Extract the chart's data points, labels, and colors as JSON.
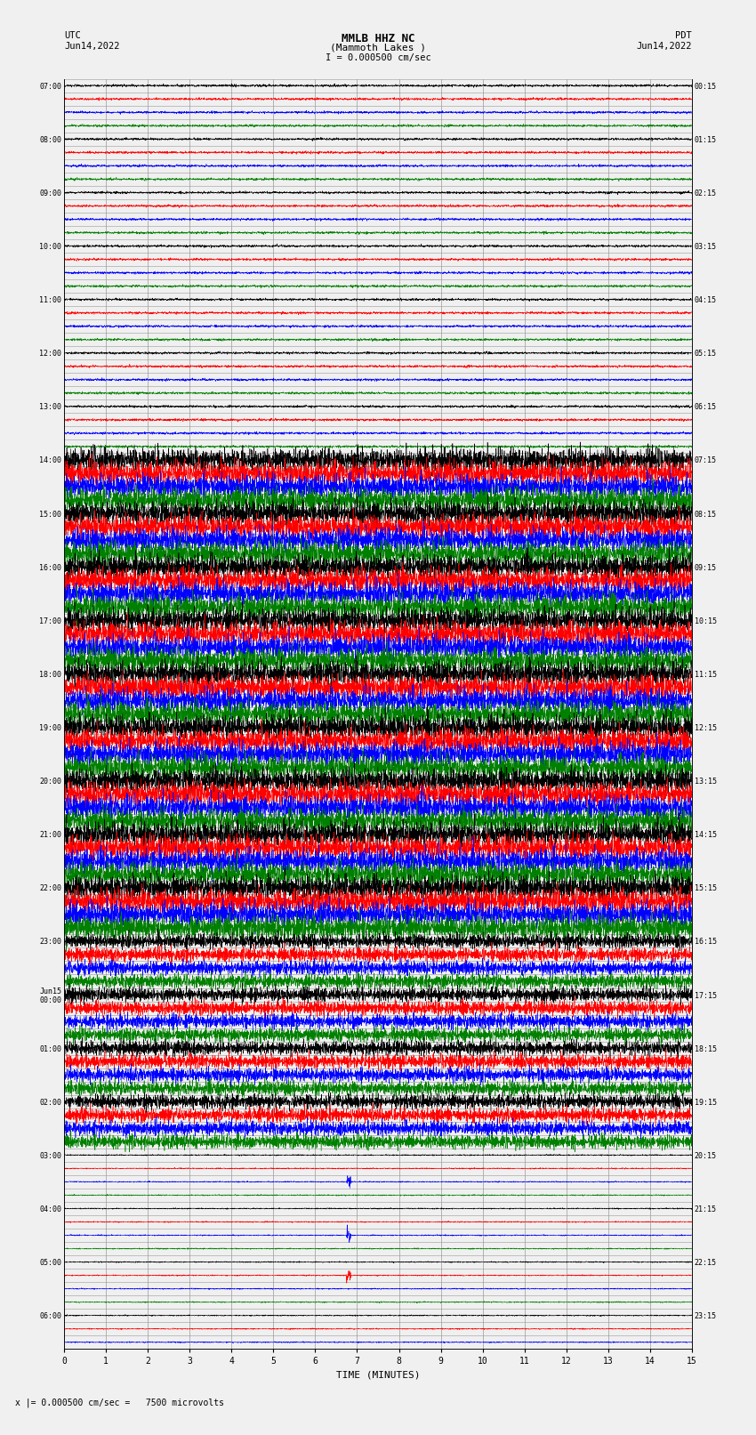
{
  "title_line1": "MMLB HHZ NC",
  "title_line2": "(Mammoth Lakes )",
  "title_line3": "I = 0.000500 cm/sec",
  "utc_header": "UTC",
  "utc_date": "Jun14,2022",
  "pdt_header": "PDT",
  "pdt_date": "Jun14,2022",
  "xlabel": "TIME (MINUTES)",
  "footer": "x |= 0.000500 cm/sec =   7500 microvolts",
  "utc_labels": [
    "07:00",
    "",
    "",
    "",
    "08:00",
    "",
    "",
    "",
    "09:00",
    "",
    "",
    "",
    "10:00",
    "",
    "",
    "",
    "11:00",
    "",
    "",
    "",
    "12:00",
    "",
    "",
    "",
    "13:00",
    "",
    "",
    "",
    "14:00",
    "",
    "",
    "",
    "15:00",
    "",
    "",
    "",
    "16:00",
    "",
    "",
    "",
    "17:00",
    "",
    "",
    "",
    "18:00",
    "",
    "",
    "",
    "19:00",
    "",
    "",
    "",
    "20:00",
    "",
    "",
    "",
    "21:00",
    "",
    "",
    "",
    "22:00",
    "",
    "",
    "",
    "23:00",
    "",
    "",
    "",
    "Jun15\n00:00",
    "",
    "",
    "",
    "01:00",
    "",
    "",
    "",
    "02:00",
    "",
    "",
    "",
    "03:00",
    "",
    "",
    "",
    "04:00",
    "",
    "",
    "",
    "05:00",
    "",
    "",
    "",
    "06:00",
    "",
    ""
  ],
  "pdt_labels": [
    "00:15",
    "",
    "",
    "",
    "01:15",
    "",
    "",
    "",
    "02:15",
    "",
    "",
    "",
    "03:15",
    "",
    "",
    "",
    "04:15",
    "",
    "",
    "",
    "05:15",
    "",
    "",
    "",
    "06:15",
    "",
    "",
    "",
    "07:15",
    "",
    "",
    "",
    "08:15",
    "",
    "",
    "",
    "09:15",
    "",
    "",
    "",
    "10:15",
    "",
    "",
    "",
    "11:15",
    "",
    "",
    "",
    "12:15",
    "",
    "",
    "",
    "13:15",
    "",
    "",
    "",
    "14:15",
    "",
    "",
    "",
    "15:15",
    "",
    "",
    "",
    "16:15",
    "",
    "",
    "",
    "17:15",
    "",
    "",
    "",
    "18:15",
    "",
    "",
    "",
    "19:15",
    "",
    "",
    "",
    "20:15",
    "",
    "",
    "",
    "21:15",
    "",
    "",
    "",
    "22:15",
    "",
    "",
    "",
    "23:15",
    "",
    ""
  ],
  "n_rows": 95,
  "n_pts": 3000,
  "colors_cycle": [
    "black",
    "red",
    "blue",
    "green"
  ],
  "bg_color": "#f0f0f0",
  "grid_color": "#999999",
  "text_color": "#000000",
  "amp_quiet": 0.08,
  "amp_medium": 0.25,
  "amp_active": 0.42,
  "active_rows": [
    28,
    29,
    30,
    31,
    32,
    33,
    34,
    35,
    36,
    37,
    38,
    39,
    40,
    41,
    42,
    43,
    44,
    45,
    46,
    47,
    48,
    49,
    50,
    51,
    52,
    53,
    54,
    55,
    56,
    57,
    58,
    59,
    60,
    61,
    62,
    63
  ],
  "medium_rows": [
    64,
    65,
    66,
    67,
    68,
    69,
    70,
    71,
    72,
    73,
    74,
    75,
    76,
    77,
    78,
    79
  ],
  "sparse_rows": [
    80,
    81,
    82,
    83,
    84,
    85,
    86,
    87,
    88,
    89,
    90,
    91,
    92,
    93,
    94
  ],
  "xticks": [
    0,
    1,
    2,
    3,
    4,
    5,
    6,
    7,
    8,
    9,
    10,
    11,
    12,
    13,
    14,
    15
  ]
}
